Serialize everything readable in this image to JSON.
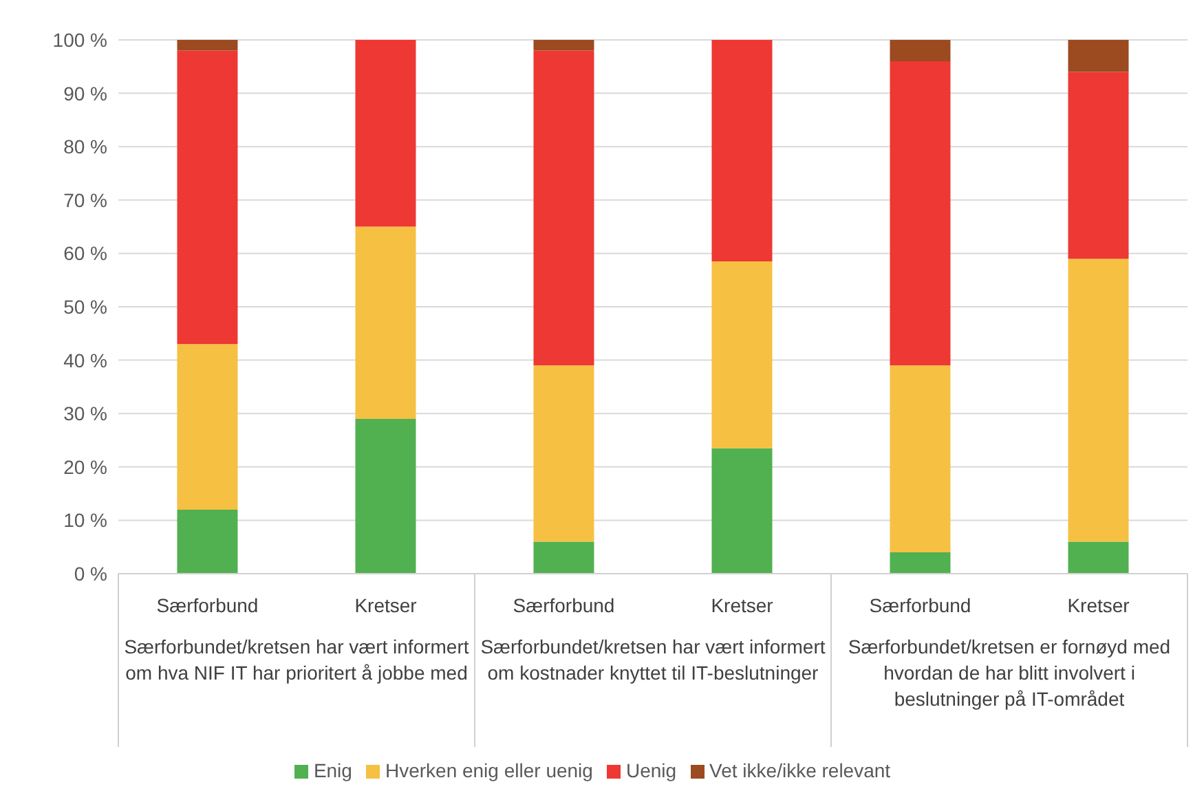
{
  "chart_data": {
    "type": "bar",
    "stacked": true,
    "categories": [
      "Særforbund",
      "Kretser",
      "Særforbund",
      "Kretser",
      "Særforbund",
      "Kretser"
    ],
    "series": [
      {
        "name": "Enig",
        "color": "#51b050",
        "values": [
          12,
          29,
          6,
          23.5,
          4,
          6
        ]
      },
      {
        "name": "Hverken enig eller uenig",
        "color": "#f6c043",
        "values": [
          31,
          36,
          33,
          35,
          35,
          53
        ]
      },
      {
        "name": "Uenig",
        "color": "#ed3833",
        "values": [
          55,
          35,
          59,
          41.5,
          57,
          35
        ]
      },
      {
        "name": "Vet ikke/ikke relevant",
        "color": "#9c4a20",
        "values": [
          2,
          0,
          2,
          0,
          4,
          6
        ]
      }
    ],
    "ylim": [
      0,
      100
    ],
    "yticks": [
      {
        "value": 0,
        "label": "0 %"
      },
      {
        "value": 10,
        "label": "10 %"
      },
      {
        "value": 20,
        "label": "20 %"
      },
      {
        "value": 30,
        "label": "30 %"
      },
      {
        "value": 40,
        "label": "40 %"
      },
      {
        "value": 50,
        "label": "50 %"
      },
      {
        "value": 60,
        "label": "60 %"
      },
      {
        "value": 70,
        "label": "70 %"
      },
      {
        "value": 80,
        "label": "80 %"
      },
      {
        "value": 90,
        "label": "90 %"
      },
      {
        "value": 100,
        "label": "100 %"
      }
    ],
    "grid": "y",
    "legend": "bottom",
    "annotations": [
      "Særforbundet/kretsen har vært informert om hva NIF IT har prioritert å jobbe med",
      "Særforbundet/kretsen har vært informert om kostnader knyttet til IT-beslutninger",
      "Særforbundet/kretsen er fornøyd med hvordan de har blitt involvert i beslutninger på IT-området"
    ]
  }
}
